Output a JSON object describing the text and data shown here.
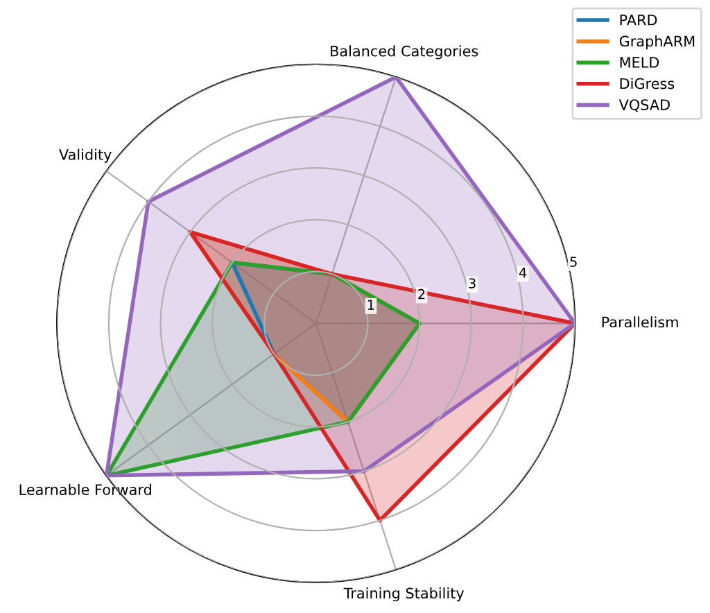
{
  "chart_data": {
    "type": "radar",
    "categories": [
      "Balanced Categories",
      "Parallelism",
      "Training Stability",
      "Learnable Forward",
      "Validity"
    ],
    "series": [
      {
        "name": "PARD",
        "color": "#1f77b4",
        "values": [
          1,
          2,
          2,
          1,
          2
        ]
      },
      {
        "name": "GraphARM",
        "color": "#ff7f0e",
        "values": [
          1,
          2,
          2,
          1,
          3
        ]
      },
      {
        "name": "MELD",
        "color": "#2ca02c",
        "values": [
          1,
          2,
          2,
          5,
          2
        ]
      },
      {
        "name": "DiGress",
        "color": "#d62728",
        "values": [
          1,
          5,
          4,
          1,
          3
        ]
      },
      {
        "name": "VQSAD",
        "color": "#9467bd",
        "values": [
          5,
          5,
          3,
          5,
          4
        ]
      }
    ],
    "ylim": [
      0,
      5
    ],
    "yticks": [
      1,
      2,
      3,
      4,
      5
    ],
    "grid": true,
    "legend": "top right"
  }
}
